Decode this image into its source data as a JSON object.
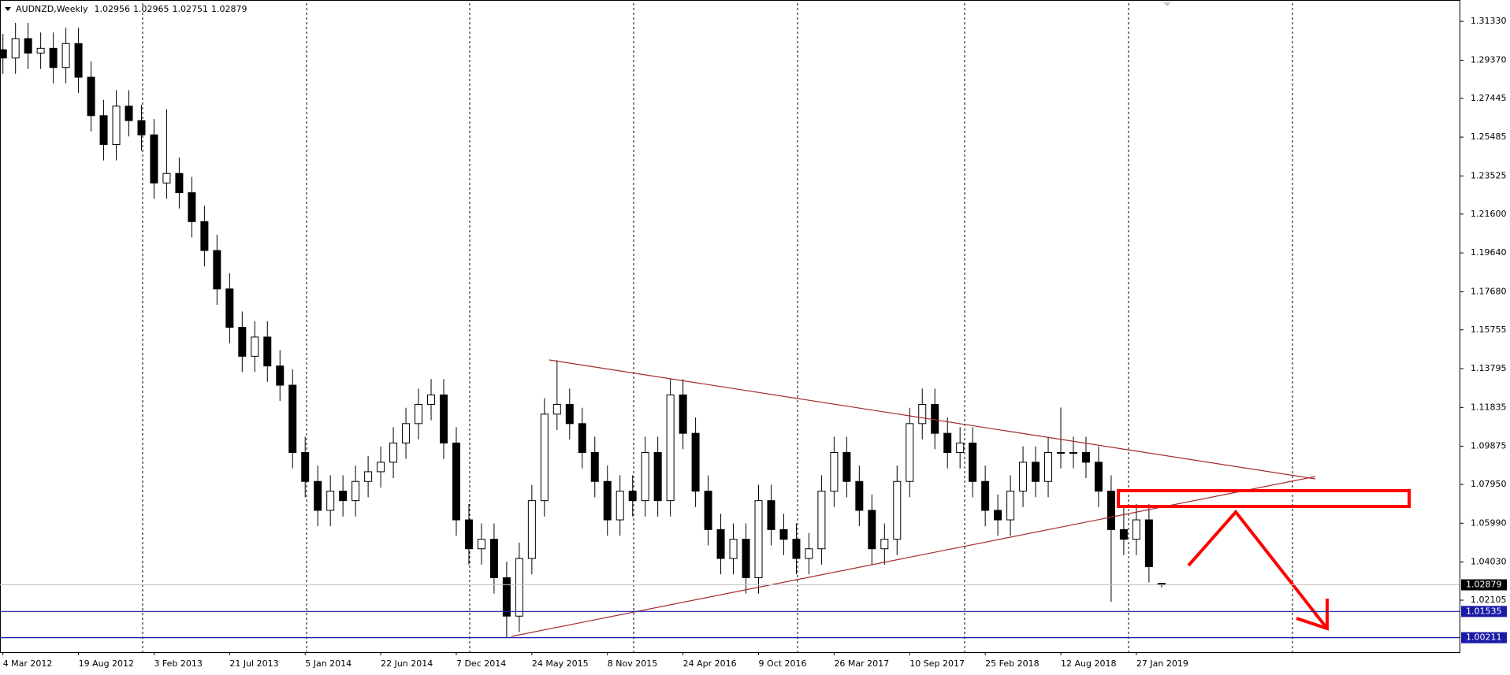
{
  "chart_data": {
    "type": "candlestick",
    "title": "AUDNZD,Weekly",
    "categories": [
      "4 Mar 2012",
      null,
      null,
      null,
      null,
      null,
      "19 Aug 2012",
      null,
      null,
      null,
      null,
      null,
      "3 Feb 2013",
      null,
      null,
      null,
      null,
      null,
      "21 Jul 2013",
      null,
      null,
      null,
      null,
      null,
      "5 Jan 2014",
      null,
      null,
      null,
      null,
      null,
      "22 Jun 2014",
      null,
      null,
      null,
      null,
      null,
      "7 Dec 2014",
      null,
      null,
      null,
      null,
      null,
      "24 May 2015",
      null,
      null,
      null,
      null,
      null,
      "8 Nov 2015",
      null,
      null,
      null,
      null,
      null,
      "24 Apr 2016",
      null,
      null,
      null,
      null,
      null,
      "9 Oct 2016",
      null,
      null,
      null,
      null,
      null,
      "26 Mar 2017",
      null,
      null,
      null,
      null,
      null,
      "10 Sep 2017",
      null,
      null,
      null,
      null,
      null,
      "25 Feb 2018",
      null,
      null,
      null,
      null,
      null,
      "12 Aug 2018",
      null,
      null,
      null,
      null,
      null,
      "27 Jan 2019",
      null,
      null
    ],
    "open": [
      1.299,
      1.2948,
      1.3046,
      1.2973,
      1.2997,
      1.29,
      1.3021,
      1.2851,
      1.2657,
      1.2511,
      1.2705,
      1.2632,
      1.256,
      1.2317,
      1.2365,
      1.2268,
      1.2122,
      1.1976,
      1.1782,
      1.1588,
      1.1442,
      1.1539,
      1.1393,
      1.1296,
      1.0956,
      1.081,
      1.0664,
      1.0761,
      1.0713,
      1.081,
      1.0859,
      1.0907,
      1.1004,
      1.1102,
      1.1199,
      1.1247,
      1.1004,
      1.0616,
      1.047,
      1.0518,
      1.0324,
      1.013,
      1.0421,
      1.0713,
      1.115,
      1.1199,
      1.1102,
      1.0956,
      1.081,
      1.0616,
      1.0761,
      1.0713,
      1.0956,
      1.0713,
      1.1247,
      1.1053,
      1.0761,
      1.0567,
      1.0421,
      1.0518,
      1.0324,
      1.0713,
      1.0567,
      1.0518,
      1.0421,
      1.047,
      1.0761,
      1.0956,
      1.081,
      1.0664,
      1.047,
      1.0518,
      1.081,
      1.1102,
      1.1199,
      1.1053,
      1.0956,
      1.1004,
      1.081,
      1.0664,
      1.0616,
      1.0761,
      1.0907,
      1.081,
      1.0956,
      1.0956,
      1.0956,
      1.0907,
      1.0761,
      1.0567,
      1.0518,
      1.0616,
      1.02956
    ],
    "high": [
      1.307,
      1.3126,
      1.3126,
      1.3077,
      1.3077,
      1.3101,
      1.3101,
      1.2931,
      1.2737,
      1.2785,
      1.2785,
      1.2712,
      1.264,
      1.269,
      1.2445,
      1.2348,
      1.2202,
      1.2056,
      1.1862,
      1.1668,
      1.1619,
      1.1619,
      1.1473,
      1.1376,
      1.1036,
      1.089,
      1.0841,
      1.0841,
      1.089,
      1.0939,
      1.0987,
      1.1084,
      1.1182,
      1.1279,
      1.1327,
      1.1327,
      1.1084,
      1.0696,
      1.0598,
      1.0598,
      1.0404,
      1.0501,
      1.0793,
      1.123,
      1.1422,
      1.1279,
      1.1182,
      1.1036,
      1.089,
      1.0841,
      1.0841,
      1.1036,
      1.1036,
      1.1327,
      1.1327,
      1.1133,
      1.0841,
      1.0647,
      1.0598,
      1.0598,
      1.0793,
      1.0793,
      1.0647,
      1.0598,
      1.055,
      1.0841,
      1.1036,
      1.1036,
      1.089,
      1.0744,
      1.0598,
      1.089,
      1.1182,
      1.1279,
      1.1279,
      1.1133,
      1.1084,
      1.1084,
      1.089,
      1.0744,
      1.0841,
      1.0987,
      1.0987,
      1.1036,
      1.1183,
      1.1036,
      1.1036,
      1.0987,
      1.0841,
      1.069,
      1.0696,
      1.0696,
      1.02965
    ],
    "low": [
      1.2868,
      1.2868,
      1.2893,
      1.2893,
      1.282,
      1.282,
      1.2771,
      1.2577,
      1.2431,
      1.2431,
      1.2552,
      1.248,
      1.2237,
      1.2237,
      1.2188,
      1.2042,
      1.1896,
      1.1702,
      1.1508,
      1.1362,
      1.1362,
      1.1313,
      1.1216,
      1.0876,
      1.073,
      1.0584,
      1.0584,
      1.0633,
      1.0633,
      1.073,
      1.0779,
      1.0827,
      1.0924,
      1.1022,
      1.1119,
      1.0924,
      1.0536,
      1.039,
      1.039,
      1.0244,
      1.0021,
      1.005,
      1.0341,
      1.0633,
      1.107,
      1.1022,
      1.0876,
      1.073,
      1.0536,
      1.0536,
      1.0633,
      1.0633,
      1.0633,
      1.0633,
      1.0973,
      1.0681,
      1.0487,
      1.0341,
      1.0341,
      1.0244,
      1.0244,
      1.0487,
      1.0438,
      1.0341,
      1.0341,
      1.039,
      1.0681,
      1.073,
      1.0584,
      1.039,
      1.039,
      1.0438,
      1.073,
      1.1022,
      1.0973,
      1.0876,
      1.0876,
      1.073,
      1.0584,
      1.0536,
      1.0536,
      1.0681,
      1.073,
      1.073,
      1.0876,
      1.0876,
      1.0827,
      1.0681,
      1.0202,
      1.0438,
      1.0438,
      1.03,
      1.02751
    ],
    "close": [
      1.2948,
      1.3046,
      1.2973,
      1.2997,
      1.29,
      1.3021,
      1.2851,
      1.2657,
      1.2511,
      1.2705,
      1.2632,
      1.256,
      1.2317,
      1.2365,
      1.2268,
      1.2122,
      1.1976,
      1.1782,
      1.1588,
      1.1442,
      1.1539,
      1.1393,
      1.1296,
      1.0956,
      1.081,
      1.0664,
      1.0761,
      1.0713,
      1.081,
      1.0859,
      1.0907,
      1.1004,
      1.1102,
      1.1199,
      1.1247,
      1.1004,
      1.0616,
      1.047,
      1.0518,
      1.0324,
      1.013,
      1.0421,
      1.0713,
      1.115,
      1.1199,
      1.1102,
      1.0956,
      1.081,
      1.0616,
      1.0761,
      1.0713,
      1.0956,
      1.0713,
      1.1247,
      1.1053,
      1.0761,
      1.0567,
      1.0421,
      1.0518,
      1.0324,
      1.0713,
      1.0567,
      1.0518,
      1.0421,
      1.047,
      1.0761,
      1.0956,
      1.081,
      1.0664,
      1.047,
      1.0518,
      1.081,
      1.1102,
      1.1199,
      1.1053,
      1.0956,
      1.1004,
      1.081,
      1.0664,
      1.0616,
      1.0761,
      1.0907,
      1.081,
      1.0956,
      1.0956,
      1.0956,
      1.0907,
      1.0761,
      1.0567,
      1.0518,
      1.0616,
      1.038,
      1.02879
    ],
    "ylim": [
      0.9948,
      1.3225
    ],
    "yticks": [
      {
        "value": 1.3133,
        "label": "1.31330"
      },
      {
        "value": 1.2937,
        "label": "1.29370"
      },
      {
        "value": 1.27445,
        "label": "1.27445"
      },
      {
        "value": 1.25485,
        "label": "1.25485"
      },
      {
        "value": 1.23525,
        "label": "1.23525"
      },
      {
        "value": 1.216,
        "label": "1.21600"
      },
      {
        "value": 1.1964,
        "label": "1.19640"
      },
      {
        "value": 1.1768,
        "label": "1.17680"
      },
      {
        "value": 1.15755,
        "label": "1.15755"
      },
      {
        "value": 1.13795,
        "label": "1.13795"
      },
      {
        "value": 1.11835,
        "label": "1.11835"
      },
      {
        "value": 1.09875,
        "label": "1.09875"
      },
      {
        "value": 1.0795,
        "label": "1.07950"
      },
      {
        "value": 1.0599,
        "label": "1.05990"
      },
      {
        "value": 1.0403,
        "label": "1.04030"
      },
      {
        "value": 1.02105,
        "label": "1.02105"
      }
    ],
    "hlines": [
      1.01535,
      1.00211
    ],
    "hline_color": "#1a1aa6",
    "up_color": "#ffffff",
    "down_color": "#000000"
  }
}
